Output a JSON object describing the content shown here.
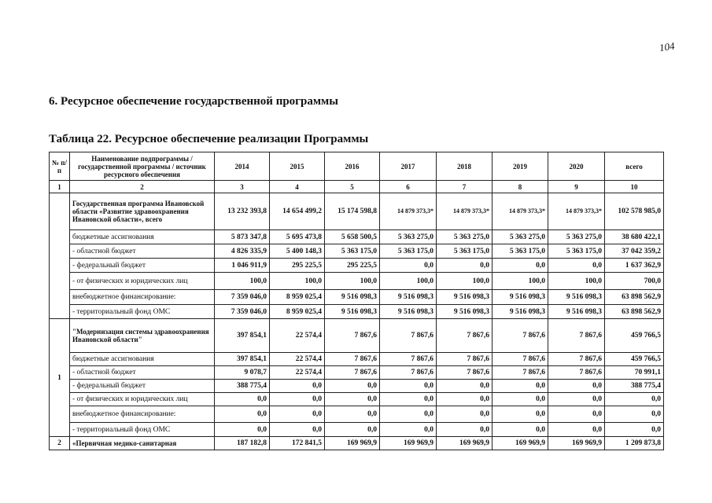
{
  "page_number": "104",
  "section_title": "6. Ресурсное обеспечение государственной программы",
  "table_title": "Таблица 22. Ресурсное обеспечение реализации Программы",
  "table": {
    "header": [
      "№ п/п",
      "Наименование подпрограммы / государственной программы / источник ресурсного обеспечения",
      "2014",
      "2015",
      "2016",
      "2017",
      "2018",
      "2019",
      "2020",
      "всего"
    ],
    "column_numbers": [
      "1",
      "2",
      "3",
      "4",
      "5",
      "6",
      "7",
      "8",
      "9",
      "10"
    ],
    "groups": [
      {
        "rows": [
          [
            "Государственная программа Ивановской области «Развитие здравоохранения Ивановской области», всего",
            "13 232 393,8",
            "14 654 499,2",
            "15 174 598,8",
            "14 879 373,3*",
            "14 879 373,3*",
            "14 879 373,3*",
            "14 879 373,3*",
            "102 578 985,0"
          ],
          [
            "бюджетные ассигнования",
            "5 873 347,8",
            "5 695 473,8",
            "5 658 500,5",
            "5 363 275,0",
            "5 363 275,0",
            "5 363 275,0",
            "5 363 275,0",
            "38 680 422,1"
          ],
          [
            "- областной бюджет",
            "4 826 335,9",
            "5 400 148,3",
            "5 363 175,0",
            "5 363 175,0",
            "5 363 175,0",
            "5 363 175,0",
            "5 363 175,0",
            "37 042 359,2"
          ],
          [
            "- федеральный бюджет",
            "1 046 911,9",
            "295 225,5",
            "295 225,5",
            "0,0",
            "0,0",
            "0,0",
            "0,0",
            "1 637 362,9"
          ],
          [
            "- от физических и юридических лиц",
            "100,0",
            "100,0",
            "100,0",
            "100,0",
            "100,0",
            "100,0",
            "100,0",
            "700,0"
          ],
          [
            "внебюджетное финансирование:",
            "7 359 046,0",
            "8 959 025,4",
            "9 516 098,3",
            "9 516 098,3",
            "9 516 098,3",
            "9 516 098,3",
            "9 516 098,3",
            "63 898 562,9"
          ],
          [
            "- территориальный фонд ОМС",
            "7 359 046,0",
            "8 959 025,4",
            "9 516 098,3",
            "9 516 098,3",
            "9 516 098,3",
            "9 516 098,3",
            "9 516 098,3",
            "63 898 562,9"
          ]
        ]
      },
      {
        "number": "1",
        "rows": [
          [
            "\"Модернизация системы здравоохранения Ивановской области\"",
            "397 854,1",
            "22 574,4",
            "7 867,6",
            "7 867,6",
            "7 867,6",
            "7 867,6",
            "7 867,6",
            "459 766,5"
          ],
          [
            "бюджетные ассигнования",
            "397 854,1",
            "22 574,4",
            "7 867,6",
            "7 867,6",
            "7 867,6",
            "7 867,6",
            "7 867,6",
            "459 766,5"
          ],
          [
            "- областной бюджет",
            "9 078,7",
            "22 574,4",
            "7 867,6",
            "7 867,6",
            "7 867,6",
            "7 867,6",
            "7 867,6",
            "70 991,1"
          ],
          [
            "- федеральный бюджет",
            "388 775,4",
            "0,0",
            "0,0",
            "0,0",
            "0,0",
            "0,0",
            "0,0",
            "388 775,4"
          ],
          [
            "- от физических и юридических лиц",
            "0,0",
            "0,0",
            "0,0",
            "0,0",
            "0,0",
            "0,0",
            "0,0",
            "0,0"
          ],
          [
            "внебюджетное финансирование:",
            "0,0",
            "0,0",
            "0,0",
            "0,0",
            "0,0",
            "0,0",
            "0,0",
            "0,0"
          ],
          [
            "- территориальный фонд ОМС",
            "0,0",
            "0,0",
            "0,0",
            "0,0",
            "0,0",
            "0,0",
            "0,0",
            "0,0"
          ]
        ]
      },
      {
        "number": "2",
        "rows": [
          [
            "«Первичная медико-санитарная",
            "187 182,8",
            "172 841,5",
            "169 969,9",
            "169 969,9",
            "169 969,9",
            "169 969,9",
            "169 969,9",
            "1 209 873,8"
          ]
        ]
      }
    ]
  }
}
